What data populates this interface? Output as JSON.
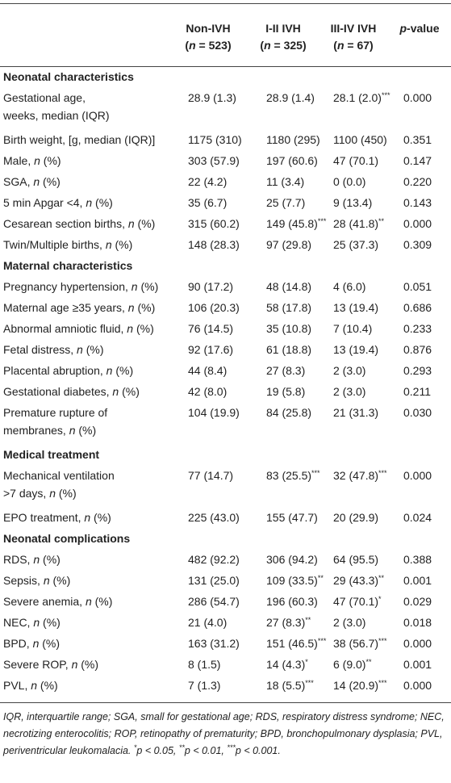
{
  "header": {
    "columns": [
      {
        "name": "Non-IVH",
        "n": "(n = 523)"
      },
      {
        "name": "I-II IVH",
        "n": "(n = 325)"
      },
      {
        "name": "III-IV IVH",
        "n": "(n = 67)"
      }
    ],
    "p_value": "p-value"
  },
  "sections": [
    {
      "title": "Neonatal characteristics",
      "rows": [
        {
          "label": [
            "Gestational age,",
            "weeks, median (IQR)"
          ],
          "values": [
            "28.9 (1.3)",
            "28.9 (1.4)",
            "28.1 (2.0)***"
          ],
          "p": "0.000"
        },
        {
          "label": [
            "Birth weight, [g, median (IQR)]"
          ],
          "values": [
            "1175 (310)",
            "1180 (295)",
            "1100 (450)"
          ],
          "p": "0.351"
        },
        {
          "label": [
            "Male, n (%)"
          ],
          "values": [
            "303 (57.9)",
            "197 (60.6)",
            "47 (70.1)"
          ],
          "p": "0.147"
        },
        {
          "label": [
            "SGA, n (%)"
          ],
          "values": [
            "22 (4.2)",
            "11 (3.4)",
            "0 (0.0)"
          ],
          "p": "0.220"
        },
        {
          "label": [
            "5 min Apgar <4, n (%)"
          ],
          "values": [
            "35 (6.7)",
            "25 (7.7)",
            "9 (13.4)"
          ],
          "p": "0.143"
        },
        {
          "label": [
            "Cesarean section births, n (%)"
          ],
          "values": [
            "315 (60.2)",
            "149 (45.8)***",
            "28 (41.8)**"
          ],
          "p": "0.000"
        },
        {
          "label": [
            "Twin/Multiple births, n (%)"
          ],
          "values": [
            "148 (28.3)",
            "97 (29.8)",
            "25 (37.3)"
          ],
          "p": "0.309"
        }
      ]
    },
    {
      "title": "Maternal characteristics",
      "rows": [
        {
          "label": [
            "Pregnancy hypertension, n (%)"
          ],
          "values": [
            "90 (17.2)",
            "48 (14.8)",
            "4 (6.0)"
          ],
          "p": "0.051"
        },
        {
          "label": [
            "Maternal age ≥35 years, n (%)"
          ],
          "values": [
            "106 (20.3)",
            "58 (17.8)",
            "13 (19.4)"
          ],
          "p": "0.686"
        },
        {
          "label": [
            "Abnormal amniotic fluid, n (%)"
          ],
          "values": [
            "76 (14.5)",
            "35 (10.8)",
            "7 (10.4)"
          ],
          "p": "0.233"
        },
        {
          "label": [
            "Fetal distress, n (%)"
          ],
          "values": [
            "92 (17.6)",
            "61 (18.8)",
            "13 (19.4)"
          ],
          "p": "0.876"
        },
        {
          "label": [
            "Placental abruption, n (%)"
          ],
          "values": [
            "44 (8.4)",
            "27 (8.3)",
            "2 (3.0)"
          ],
          "p": "0.293"
        },
        {
          "label": [
            "Gestational diabetes, n (%)"
          ],
          "values": [
            "42 (8.0)",
            "19 (5.8)",
            "2 (3.0)"
          ],
          "p": "0.211"
        },
        {
          "label": [
            "Premature rupture of",
            "membranes, n (%)"
          ],
          "values": [
            "104 (19.9)",
            "84 (25.8)",
            "21 (31.3)"
          ],
          "p": "0.030"
        }
      ]
    },
    {
      "title": "Medical treatment",
      "rows": [
        {
          "label": [
            "Mechanical ventilation",
            ">7 days, n (%)"
          ],
          "values": [
            "77 (14.7)",
            "83 (25.5)***",
            "32 (47.8)***"
          ],
          "p": "0.000"
        },
        {
          "label": [
            "EPO treatment, n (%)"
          ],
          "values": [
            "225 (43.0)",
            "155 (47.7)",
            "20 (29.9)"
          ],
          "p": "0.024"
        }
      ]
    },
    {
      "title": "Neonatal complications",
      "rows": [
        {
          "label": [
            "RDS, n (%)"
          ],
          "values": [
            "482 (92.2)",
            "306 (94.2)",
            "64 (95.5)"
          ],
          "p": "0.388"
        },
        {
          "label": [
            "Sepsis, n (%)"
          ],
          "values": [
            "131 (25.0)",
            "109 (33.5)**",
            "29 (43.3)**"
          ],
          "p": "0.001"
        },
        {
          "label": [
            "Severe anemia, n (%)"
          ],
          "values": [
            "286 (54.7)",
            "196 (60.3)",
            "47 (70.1)*"
          ],
          "p": "0.029"
        },
        {
          "label": [
            "NEC, n (%)"
          ],
          "values": [
            "21 (4.0)",
            "27 (8.3)**",
            "2 (3.0)"
          ],
          "p": "0.018"
        },
        {
          "label": [
            "BPD, n (%)"
          ],
          "values": [
            "163 (31.2)",
            "151 (46.5)***",
            "38 (56.7)***"
          ],
          "p": "0.000"
        },
        {
          "label": [
            "Severe ROP, n (%)"
          ],
          "values": [
            "8 (1.5)",
            "14 (4.3)*",
            "6 (9.0)**"
          ],
          "p": "0.001"
        },
        {
          "label": [
            "PVL, n (%)"
          ],
          "values": [
            "7 (1.3)",
            "18 (5.5)***",
            "14 (20.9)***"
          ],
          "p": "0.000"
        }
      ]
    }
  ],
  "footnote": "IQR, interquartile range; SGA, small for gestational age; RDS, respiratory distress syndrome; NEC, necrotizing enterocolitis; ROP, retinopathy of prematurity; BPD, bronchopulmonary dysplasia; PVL, periventricular leukomalacia. *p < 0.05, **p < 0.01, ***p < 0.001."
}
